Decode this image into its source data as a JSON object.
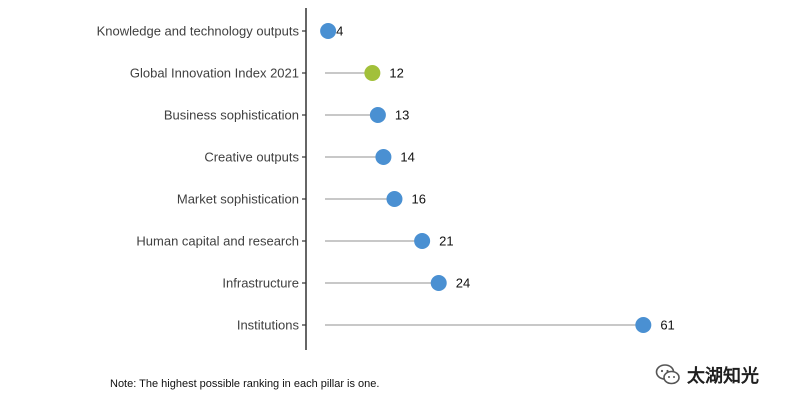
{
  "chart_data": {
    "type": "lollipop",
    "categories": [
      "Knowledge and technology outputs",
      "Global Innovation Index 2021",
      "Business sophistication",
      "Creative outputs",
      "Market sophistication",
      "Human capital and research",
      "Infrastructure",
      "Institutions"
    ],
    "values": [
      4,
      12,
      13,
      14,
      16,
      21,
      24,
      61
    ],
    "highlight_category": "Global Innovation Index 2021",
    "colors": {
      "default": "#4a90d2",
      "highlight": "#a2c03a",
      "stem": "#c8c8c8",
      "axis": "#333333"
    },
    "xlim": [
      0,
      65
    ],
    "grid": false,
    "title": "",
    "xlabel": "",
    "ylabel": ""
  },
  "note": "Note: The highest possible ranking in each pillar is one.",
  "watermark": {
    "text": "太湖知光",
    "icon": "wechat-icon"
  }
}
